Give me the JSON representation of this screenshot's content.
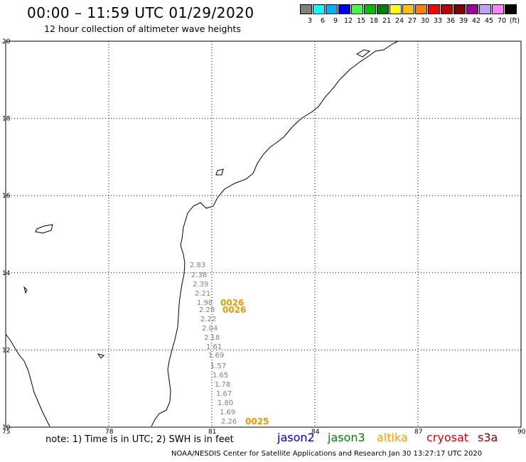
{
  "header": {
    "title": "00:00 – 11:59 UTC 01/29/2020",
    "subtitle": "12 hour collection of altimeter wave heights"
  },
  "color_scale": {
    "colors": [
      "#808080",
      "#00ffff",
      "#00b0ff",
      "#0000ff",
      "#40ff40",
      "#00c000",
      "#008000",
      "#ffff00",
      "#ffc000",
      "#ff8000",
      "#ff0000",
      "#c00000",
      "#800000",
      "#a000a0",
      "#c0a0ff",
      "#ff80ff",
      "#000000"
    ],
    "labels": [
      "3",
      "6",
      "9",
      "12",
      "15",
      "18",
      "21",
      "24",
      "27",
      "30",
      "33",
      "36",
      "39",
      "42",
      "45",
      "70",
      "(ft)"
    ]
  },
  "map": {
    "lat_labels": [
      "20",
      "18",
      "16",
      "14",
      "12",
      "10"
    ],
    "lon_labels": [
      "75",
      "78",
      "81",
      "84",
      "87",
      "90"
    ],
    "swh_values": [
      "2.83",
      "2.38",
      "2.39",
      "2.21",
      "1.98",
      "2.28",
      "2.22",
      "2.04",
      "2.18",
      "1.61",
      "1.69",
      "1.57",
      "1.65",
      "1.78",
      "1.67",
      "1.80",
      "1.69",
      "2.26"
    ],
    "orbit_labels": [
      "0026",
      "0026",
      "0025"
    ]
  },
  "footer": {
    "note": "note: 1) Time is in UTC; 2) SWH is in feet",
    "satellites": [
      {
        "name": "jason2",
        "color": "#0000cc"
      },
      {
        "name": "jason3",
        "color": "#008000"
      },
      {
        "name": "altika",
        "color": "#ff9900"
      },
      {
        "name": "cryosat",
        "color": "#e00000"
      },
      {
        "name": "s3a",
        "color": "#8b0000"
      }
    ],
    "credit": "NOAA/NESDIS Center for Satellite Applications and Research   Jan 30 13:27:17 UTC 2020"
  }
}
